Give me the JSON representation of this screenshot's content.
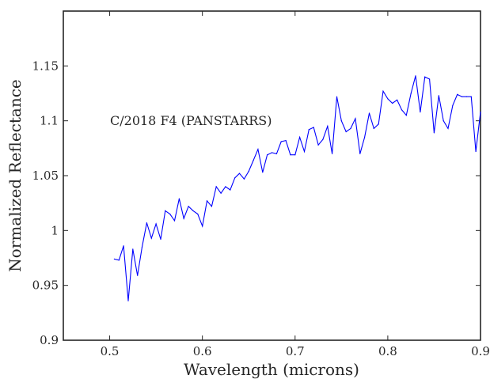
{
  "chart_data": {
    "type": "line",
    "title": "",
    "xlabel": "Wavelength (microns)",
    "ylabel": "Normalized Reflectance",
    "xlim": [
      0.45,
      0.9
    ],
    "ylim": [
      0.9,
      1.2
    ],
    "xticks": [
      0.5,
      0.6,
      0.7,
      0.8,
      0.9
    ],
    "xtick_labels": [
      "0.5",
      "0.6",
      "0.7",
      "0.8",
      "0.9"
    ],
    "yticks": [
      0.9,
      0.95,
      1.0,
      1.05,
      1.1,
      1.15
    ],
    "ytick_labels": [
      "0.9",
      "0.95",
      "1",
      "1.05",
      "1.1",
      "1.15"
    ],
    "grid": false,
    "annotation": "C/2018 F4 (PANSTARRS)",
    "series": [
      {
        "color": "#0000ff",
        "x": [
          0.505,
          0.51,
          0.515,
          0.52,
          0.525,
          0.53,
          0.535,
          0.54,
          0.545,
          0.55,
          0.555,
          0.56,
          0.565,
          0.57,
          0.575,
          0.58,
          0.585,
          0.59,
          0.595,
          0.6,
          0.605,
          0.61,
          0.615,
          0.62,
          0.625,
          0.63,
          0.635,
          0.64,
          0.645,
          0.65,
          0.655,
          0.66,
          0.665,
          0.67,
          0.675,
          0.68,
          0.685,
          0.69,
          0.695,
          0.7,
          0.705,
          0.71,
          0.715,
          0.72,
          0.725,
          0.73,
          0.735,
          0.74,
          0.745,
          0.75,
          0.755,
          0.76,
          0.765,
          0.77,
          0.775,
          0.78,
          0.785,
          0.79,
          0.795,
          0.8,
          0.805,
          0.81,
          0.815,
          0.82,
          0.825,
          0.83,
          0.835,
          0.84,
          0.845,
          0.85,
          0.855,
          0.86,
          0.865,
          0.87,
          0.875,
          0.88,
          0.885,
          0.89,
          0.895,
          0.9
        ],
        "y": [
          0.974,
          0.973,
          0.986,
          0.936,
          0.983,
          0.959,
          0.985,
          1.007,
          0.993,
          1.006,
          0.992,
          1.018,
          1.015,
          1.009,
          1.029,
          1.011,
          1.022,
          1.018,
          1.015,
          1.004,
          1.027,
          1.022,
          1.04,
          1.034,
          1.04,
          1.037,
          1.048,
          1.052,
          1.047,
          1.054,
          1.064,
          1.074,
          1.053,
          1.069,
          1.071,
          1.07,
          1.081,
          1.082,
          1.069,
          1.069,
          1.085,
          1.072,
          1.092,
          1.094,
          1.078,
          1.083,
          1.095,
          1.07,
          1.122,
          1.1,
          1.09,
          1.093,
          1.102,
          1.07,
          1.085,
          1.107,
          1.093,
          1.097,
          1.127,
          1.12,
          1.116,
          1.119,
          1.11,
          1.105,
          1.125,
          1.141,
          1.108,
          1.14,
          1.138,
          1.089,
          1.123,
          1.1,
          1.093,
          1.114,
          1.124,
          1.122,
          1.122,
          1.122,
          1.072,
          1.108
        ]
      }
    ]
  }
}
